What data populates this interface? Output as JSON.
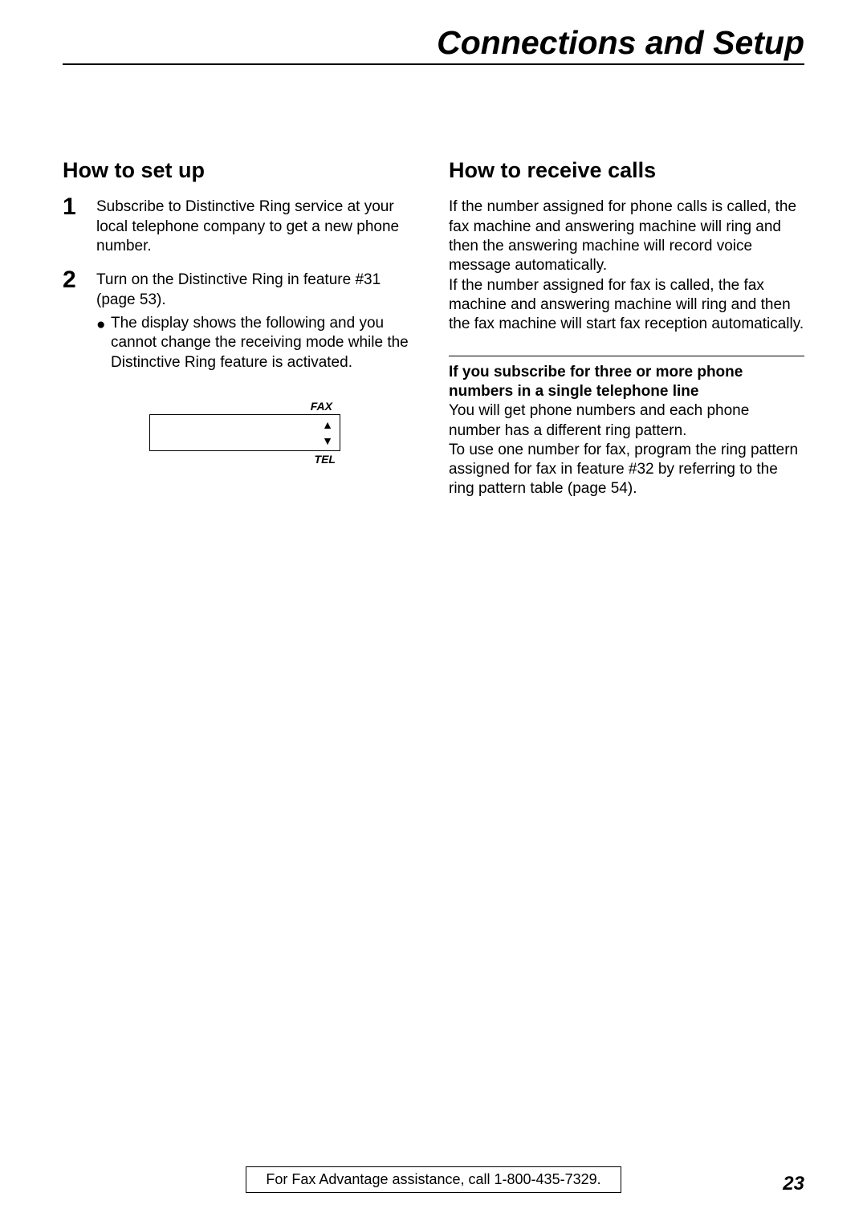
{
  "chapter_title": "Connections and Setup",
  "left": {
    "heading": "How to set up",
    "steps": [
      {
        "num": "1",
        "text": "Subscribe to Distinctive Ring service at your local telephone company to get a new phone number."
      },
      {
        "num": "2",
        "text": "Turn on the Distinctive Ring in feature #31 (page 53).",
        "bullet": "The display shows the following and you cannot change the receiving mode while the Distinctive Ring feature is activated."
      }
    ],
    "display": {
      "top_label": "FAX",
      "bottom_label": "TEL",
      "arrow_up": "▲",
      "arrow_down": "▼"
    }
  },
  "right": {
    "heading": "How to receive calls",
    "para1": "If the number assigned for phone calls is called, the fax machine and answering machine will ring and then the answering machine will record voice message automatically.",
    "para2": "If the number assigned for fax is called, the fax machine and answering machine will ring and then the fax machine will start fax reception automatically.",
    "subhead": "If you subscribe for three or more phone numbers in a single telephone line",
    "para3": "You will get phone numbers and each phone number has a different ring pattern.",
    "para4": "To use one number for fax, program the ring pattern assigned for fax in feature #32 by referring to the ring pattern table (page 54)."
  },
  "footer": {
    "text": "For Fax Advantage assistance, call 1-800-435-7329.",
    "page_num": "23"
  }
}
